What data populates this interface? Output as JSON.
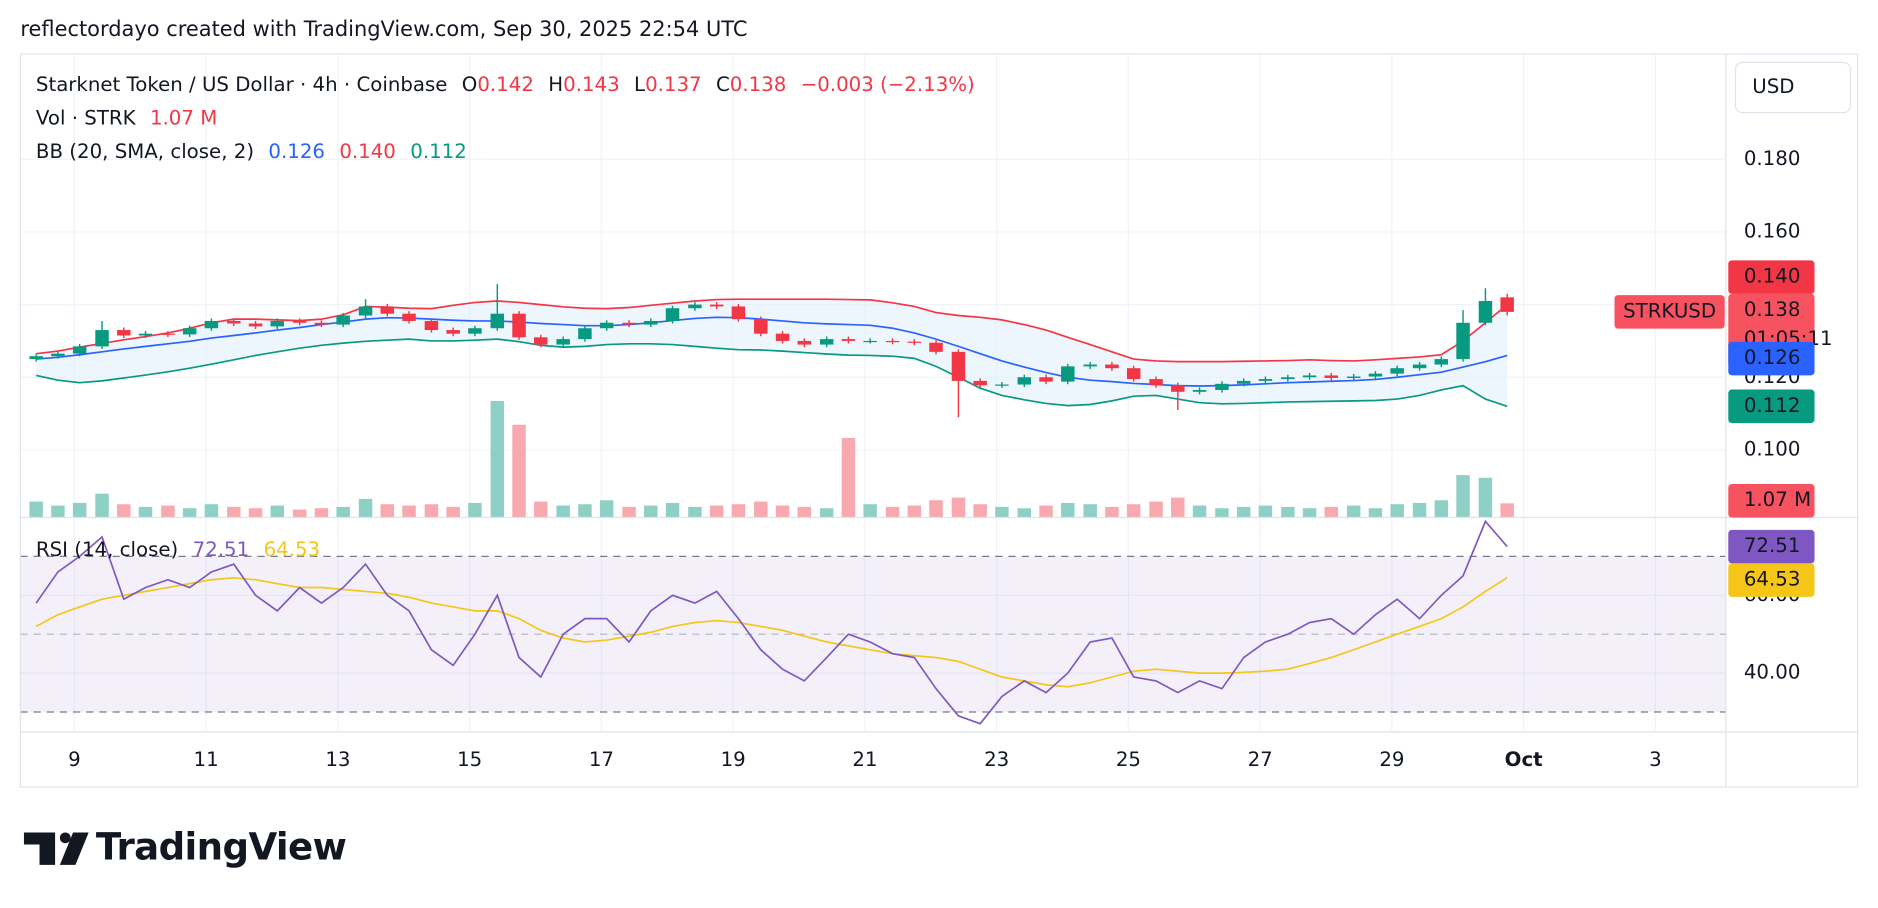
{
  "attribution": "reflectordayo created with TradingView.com, Sep 30, 2025 22:54 UTC",
  "branding": "TradingView",
  "chart_data": {
    "type": "candlestick",
    "title": "Starknet Token / US Dollar · 4h · Coinbase",
    "currency": "USD",
    "symbol_tag": "STRKUSD",
    "countdown": "01:05:11",
    "ohlc_labels": [
      "O",
      "H",
      "L",
      "C"
    ],
    "change": "−0.003 (−2.13%)",
    "up_color": "#089981",
    "down_color": "#f23645",
    "grid": true,
    "x": [
      8.42,
      8.75,
      9.08,
      9.42,
      9.75,
      10.08,
      10.42,
      10.75,
      11.08,
      11.42,
      11.75,
      12.08,
      12.42,
      12.75,
      13.08,
      13.42,
      13.75,
      14.08,
      14.42,
      14.75,
      15.08,
      15.42,
      15.75,
      16.08,
      16.42,
      16.75,
      17.08,
      17.42,
      17.75,
      18.08,
      18.42,
      18.75,
      19.08,
      19.42,
      19.75,
      20.08,
      20.42,
      20.75,
      21.08,
      21.42,
      21.75,
      22.08,
      22.42,
      22.75,
      23.08,
      23.42,
      23.75,
      24.08,
      24.42,
      24.75,
      25.08,
      25.42,
      25.75,
      26.08,
      26.42,
      26.75,
      27.08,
      27.42,
      27.75,
      28.08,
      28.42,
      28.75,
      29.08,
      29.42,
      29.75,
      30.08,
      30.42,
      30.75
    ],
    "xlim": [
      8.18,
      34.07
    ],
    "xticks": [
      9,
      11,
      13,
      15,
      17,
      19,
      21,
      23,
      25,
      27,
      29,
      {
        "value": 31,
        "label": "Oct"
      },
      {
        "value": 33,
        "label": "3"
      }
    ],
    "ylim": [
      0.0814,
      0.209
    ],
    "yticks": [
      {
        "value": 0.18,
        "label": "0.180"
      },
      {
        "value": 0.16,
        "label": "0.160"
      },
      {
        "value": 0.14,
        "label": "0.140"
      },
      {
        "value": 0.12,
        "label": "0.120"
      },
      {
        "value": 0.1,
        "label": "0.100"
      }
    ],
    "open": [
      0.125,
      0.1258,
      0.1265,
      0.1285,
      0.133,
      0.1315,
      0.132,
      0.1318,
      0.1335,
      0.1355,
      0.1348,
      0.134,
      0.1355,
      0.135,
      0.1345,
      0.137,
      0.1395,
      0.1375,
      0.1355,
      0.133,
      0.132,
      0.1335,
      0.1375,
      0.131,
      0.129,
      0.1305,
      0.1335,
      0.135,
      0.1345,
      0.1355,
      0.139,
      0.14,
      0.1395,
      0.136,
      0.132,
      0.13,
      0.129,
      0.1305,
      0.13,
      0.13,
      0.1298,
      0.1295,
      0.127,
      0.119,
      0.1178,
      0.118,
      0.12,
      0.1188,
      0.123,
      0.1235,
      0.1225,
      0.1195,
      0.1178,
      0.116,
      0.1165,
      0.1182,
      0.119,
      0.1195,
      0.12,
      0.1205,
      0.1198,
      0.1202,
      0.121,
      0.1225,
      0.1235,
      0.125,
      0.135,
      0.142
    ],
    "high": [
      0.1265,
      0.1272,
      0.1292,
      0.1355,
      0.1337,
      0.1327,
      0.1327,
      0.1342,
      0.1362,
      0.1362,
      0.1355,
      0.1362,
      0.1362,
      0.1357,
      0.1377,
      0.1415,
      0.1402,
      0.1382,
      0.1362,
      0.1337,
      0.1342,
      0.1457,
      0.1382,
      0.1317,
      0.1312,
      0.1342,
      0.1357,
      0.1357,
      0.1362,
      0.1397,
      0.1407,
      0.1407,
      0.1402,
      0.1367,
      0.1327,
      0.1307,
      0.1312,
      0.1312,
      0.1307,
      0.1307,
      0.1305,
      0.1302,
      0.1277,
      0.1197,
      0.1187,
      0.1207,
      0.1207,
      0.1237,
      0.1242,
      0.1242,
      0.1232,
      0.1202,
      0.1185,
      0.1172,
      0.1189,
      0.1197,
      0.1202,
      0.1207,
      0.1212,
      0.1212,
      0.1209,
      0.1217,
      0.1232,
      0.1242,
      0.1257,
      0.1385,
      0.1445,
      0.143
    ],
    "low": [
      0.1243,
      0.1251,
      0.1258,
      0.1278,
      0.1308,
      0.1308,
      0.1311,
      0.1311,
      0.1328,
      0.1341,
      0.1333,
      0.1333,
      0.1343,
      0.1338,
      0.1338,
      0.1363,
      0.1368,
      0.1348,
      0.1323,
      0.1313,
      0.1313,
      0.1328,
      0.1303,
      0.1283,
      0.1283,
      0.1298,
      0.1328,
      0.1338,
      0.1338,
      0.1348,
      0.1383,
      0.1388,
      0.1353,
      0.1313,
      0.1293,
      0.1283,
      0.1283,
      0.1293,
      0.1293,
      0.1291,
      0.1288,
      0.1263,
      0.109,
      0.1171,
      0.1171,
      0.1173,
      0.1181,
      0.1181,
      0.1223,
      0.1218,
      0.1188,
      0.1171,
      0.111,
      0.1153,
      0.1158,
      0.1175,
      0.1183,
      0.1188,
      0.1193,
      0.1191,
      0.1191,
      0.1195,
      0.1203,
      0.1218,
      0.1228,
      0.1243,
      0.1343,
      0.137
    ],
    "close": [
      0.1258,
      0.1265,
      0.1285,
      0.133,
      0.1315,
      0.132,
      0.1318,
      0.1335,
      0.1355,
      0.1348,
      0.134,
      0.1355,
      0.135,
      0.1345,
      0.137,
      0.1395,
      0.1375,
      0.1355,
      0.133,
      0.132,
      0.1335,
      0.1375,
      0.131,
      0.129,
      0.1305,
      0.1335,
      0.135,
      0.1345,
      0.1355,
      0.139,
      0.14,
      0.1395,
      0.136,
      0.132,
      0.13,
      0.129,
      0.1305,
      0.13,
      0.13,
      0.1298,
      0.1295,
      0.127,
      0.119,
      0.1178,
      0.118,
      0.12,
      0.1188,
      0.123,
      0.1235,
      0.1225,
      0.1195,
      0.1178,
      0.116,
      0.1165,
      0.1182,
      0.119,
      0.1195,
      0.12,
      0.1205,
      0.1198,
      0.1202,
      0.121,
      0.1225,
      0.1235,
      0.125,
      0.135,
      0.141,
      0.138
    ],
    "volume": {
      "name": "Vol · STRK",
      "up_color": "#8fd0c6",
      "down_color": "#f8a9b0",
      "ylim": [
        0,
        35
      ],
      "values": [
        1.2,
        0.9,
        1.1,
        1.8,
        1.0,
        0.8,
        0.9,
        0.7,
        1.0,
        0.8,
        0.7,
        0.9,
        0.6,
        0.7,
        0.8,
        1.4,
        1.0,
        0.9,
        1.0,
        0.8,
        1.1,
        8.8,
        7.0,
        1.2,
        0.9,
        1.0,
        1.3,
        0.8,
        0.9,
        1.1,
        0.8,
        0.9,
        1.0,
        1.2,
        0.9,
        0.8,
        0.7,
        6.0,
        1.0,
        0.8,
        0.9,
        1.3,
        1.5,
        1.0,
        0.8,
        0.7,
        0.9,
        1.1,
        1.0,
        0.8,
        1.0,
        1.2,
        1.5,
        0.9,
        0.7,
        0.8,
        0.9,
        0.8,
        0.7,
        0.8,
        0.9,
        0.7,
        1.0,
        1.1,
        1.3,
        3.2,
        3.0,
        1.07
      ],
      "value_labels": [
        null,
        null,
        null,
        null,
        null,
        null,
        null,
        null,
        null,
        null,
        null,
        null,
        null,
        null,
        null,
        null,
        null,
        null,
        null,
        null,
        null,
        null,
        null,
        null,
        null,
        null,
        null,
        null,
        null,
        null,
        null,
        null,
        null,
        null,
        null,
        null,
        null,
        null,
        null,
        null,
        null,
        null,
        null,
        null,
        null,
        null,
        null,
        null,
        null,
        null,
        null,
        null,
        null,
        null,
        null,
        null,
        null,
        null,
        null,
        null,
        null,
        null,
        null,
        null,
        null,
        null,
        null,
        "1.07 M"
      ]
    },
    "bands": {
      "name": "BB (20, SMA, close, 2)",
      "fill": "#e3f0fb",
      "basis": {
        "color": "#2962ff",
        "values": [
          0.125,
          0.1255,
          0.1262,
          0.127,
          0.1278,
          0.1285,
          0.1292,
          0.1299,
          0.1308,
          0.1315,
          0.1322,
          0.133,
          0.1337,
          0.1345,
          0.1352,
          0.136,
          0.1364,
          0.1363,
          0.136,
          0.1357,
          0.1355,
          0.1355,
          0.1352,
          0.1348,
          0.1345,
          0.1342,
          0.1342,
          0.1345,
          0.135,
          0.1356,
          0.1362,
          0.1365,
          0.1364,
          0.136,
          0.1355,
          0.135,
          0.1347,
          0.1345,
          0.1343,
          0.1335,
          0.1322,
          0.1305,
          0.1285,
          0.1265,
          0.1245,
          0.1228,
          0.1213,
          0.12,
          0.1192,
          0.1188,
          0.1183,
          0.118,
          0.1177,
          0.1176,
          0.1177,
          0.1179,
          0.1182,
          0.1185,
          0.1187,
          0.1189,
          0.1191,
          0.1194,
          0.12,
          0.1207,
          0.1214,
          0.1228,
          0.1243,
          0.126
        ]
      },
      "upper": {
        "color": "#f23645",
        "values": [
          0.1265,
          0.1272,
          0.1283,
          0.1293,
          0.1303,
          0.1312,
          0.1322,
          0.1335,
          0.135,
          0.136,
          0.136,
          0.1358,
          0.1356,
          0.136,
          0.1372,
          0.1395,
          0.1393,
          0.139,
          0.1389,
          0.1398,
          0.1406,
          0.141,
          0.1406,
          0.14,
          0.1394,
          0.139,
          0.1389,
          0.1392,
          0.1398,
          0.1404,
          0.141,
          0.1414,
          0.1415,
          0.1415,
          0.1415,
          0.1415,
          0.1415,
          0.1414,
          0.1413,
          0.1405,
          0.1395,
          0.1378,
          0.137,
          0.1365,
          0.1358,
          0.1345,
          0.133,
          0.131,
          0.129,
          0.127,
          0.125,
          0.1245,
          0.1243,
          0.1243,
          0.1243,
          0.1244,
          0.1245,
          0.1246,
          0.1248,
          0.1246,
          0.1245,
          0.1248,
          0.1252,
          0.1256,
          0.1262,
          0.13,
          0.135,
          0.14
        ],
        "value_labels": [
          null,
          null,
          null,
          null,
          null,
          null,
          null,
          null,
          null,
          null,
          null,
          null,
          null,
          null,
          null,
          null,
          null,
          null,
          null,
          null,
          null,
          null,
          null,
          null,
          null,
          null,
          null,
          null,
          null,
          null,
          null,
          null,
          null,
          null,
          null,
          null,
          null,
          null,
          null,
          null,
          null,
          null,
          null,
          null,
          null,
          null,
          null,
          null,
          null,
          null,
          null,
          null,
          null,
          null,
          null,
          null,
          null,
          null,
          null,
          null,
          null,
          null,
          null,
          null,
          null,
          null,
          null,
          "0.140"
        ]
      },
      "lower": {
        "color": "#089981",
        "values": [
          0.1205,
          0.1192,
          0.1185,
          0.119,
          0.1198,
          0.1206,
          0.1215,
          0.1225,
          0.1236,
          0.1248,
          0.126,
          0.127,
          0.128,
          0.1288,
          0.1294,
          0.1299,
          0.1302,
          0.1305,
          0.13,
          0.13,
          0.1302,
          0.1305,
          0.1298,
          0.1288,
          0.1283,
          0.1285,
          0.129,
          0.1292,
          0.1292,
          0.129,
          0.1285,
          0.128,
          0.1276,
          0.1275,
          0.1272,
          0.1268,
          0.1264,
          0.1261,
          0.126,
          0.1258,
          0.1252,
          0.123,
          0.12,
          0.117,
          0.115,
          0.1138,
          0.1128,
          0.1122,
          0.1125,
          0.1135,
          0.1148,
          0.115,
          0.114,
          0.113,
          0.1127,
          0.1128,
          0.113,
          0.1132,
          0.1133,
          0.1134,
          0.1135,
          0.1136,
          0.114,
          0.115,
          0.1165,
          0.1177,
          0.114,
          0.112
        ]
      }
    },
    "rsi": {
      "name": "RSI (14, close)",
      "color": "#7e57c2",
      "band_color": "#7e57c2",
      "ylim": [
        24.9,
        80
      ],
      "yticks": [
        {
          "value": 40,
          "label": "40.00"
        },
        {
          "value": 60,
          "label": "60.00"
        }
      ],
      "levels": [
        30,
        50,
        70
      ],
      "values": [
        58,
        66,
        70,
        75,
        59,
        62,
        64,
        62,
        66,
        68,
        60,
        56,
        62,
        58,
        62,
        68,
        60,
        56,
        46,
        42,
        50,
        60,
        44,
        39,
        50,
        54,
        54,
        48,
        56,
        60,
        58,
        61,
        54,
        46,
        41,
        38,
        44,
        50,
        48,
        45,
        44,
        36,
        29,
        27,
        34,
        38,
        35,
        40,
        48,
        49,
        39,
        38,
        35,
        38,
        36,
        44,
        48,
        50,
        53,
        54,
        50,
        55,
        59,
        54,
        60,
        65,
        79,
        72.51
      ],
      "ma": {
        "color": "#f5c518",
        "values": [
          52,
          55,
          57,
          59,
          60,
          61,
          62,
          63,
          64,
          64.5,
          64,
          63,
          62,
          62,
          61.5,
          61,
          60.5,
          59.5,
          58,
          57,
          56,
          56,
          54,
          51,
          49,
          48,
          48.5,
          49.5,
          50.5,
          52,
          53,
          53.5,
          53,
          52,
          51,
          49.5,
          48,
          47,
          46,
          45,
          44.5,
          44,
          43,
          41,
          39,
          38,
          37,
          36.5,
          37.5,
          39,
          40.5,
          41,
          40.5,
          40,
          40,
          40.2,
          40.5,
          41,
          42.5,
          44,
          46,
          48,
          50,
          52,
          54,
          57,
          61,
          64.53
        ]
      }
    }
  }
}
